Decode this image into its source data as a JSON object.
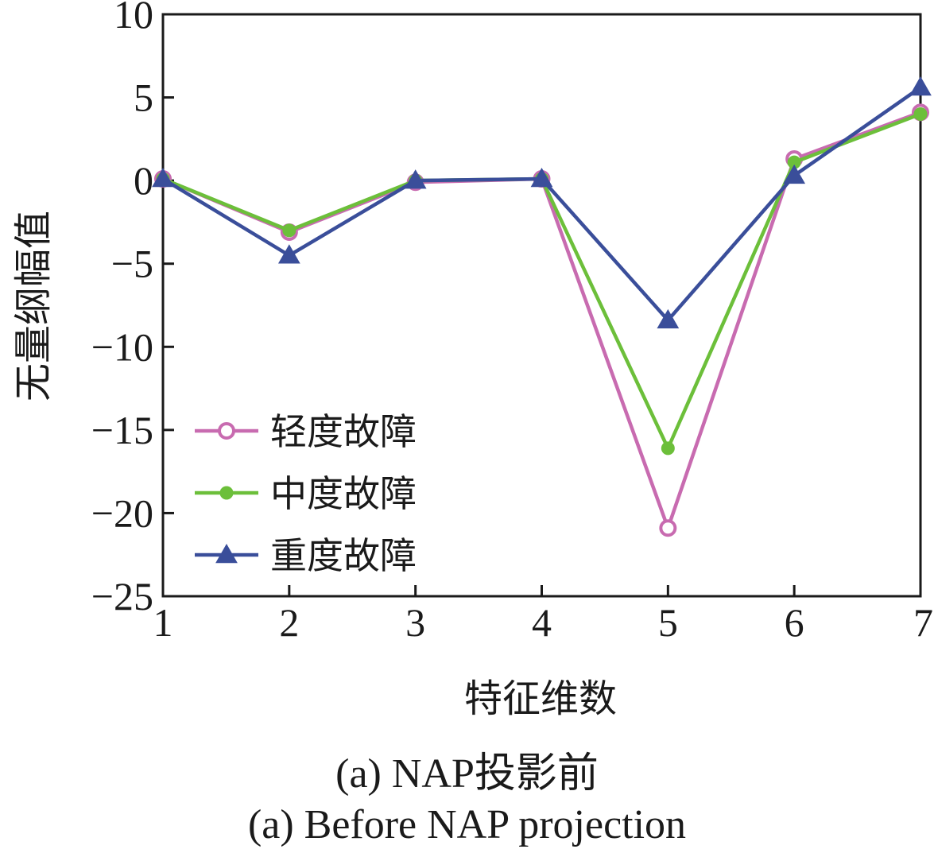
{
  "chart_data": {
    "type": "line",
    "title": "",
    "xlabel": "特征维数",
    "ylabel": "无量纲幅值",
    "x": [
      1,
      2,
      3,
      4,
      5,
      6,
      7
    ],
    "xlim": [
      1,
      7
    ],
    "ylim": [
      -25,
      10
    ],
    "xticks": [
      "1",
      "2",
      "3",
      "4",
      "5",
      "6",
      "7"
    ],
    "yticks": [
      "10",
      "5",
      "0",
      "−5",
      "−10",
      "−15",
      "−20",
      "−25"
    ],
    "ytick_values": [
      10,
      5,
      0,
      -5,
      -10,
      -15,
      -20,
      -25
    ],
    "grid": false,
    "legend_position": "lower-left",
    "series": [
      {
        "name": "轻度故障",
        "color": "#c86bb0",
        "marker": "open-circle",
        "values": [
          0.1,
          -3.1,
          -0.1,
          0.1,
          -20.9,
          1.3,
          4.1
        ]
      },
      {
        "name": "中度故障",
        "color": "#6cbf3a",
        "marker": "filled-dot",
        "values": [
          0.1,
          -3.0,
          0.0,
          0.1,
          -16.1,
          1.1,
          4.0
        ]
      },
      {
        "name": "重度故障",
        "color": "#3a4e9a",
        "marker": "triangle",
        "values": [
          0.1,
          -4.5,
          0.0,
          0.1,
          -8.4,
          0.3,
          5.6
        ]
      }
    ]
  },
  "caption": {
    "zh": "(a)  NAP投影前",
    "en": "(a)  Before NAP projection"
  }
}
